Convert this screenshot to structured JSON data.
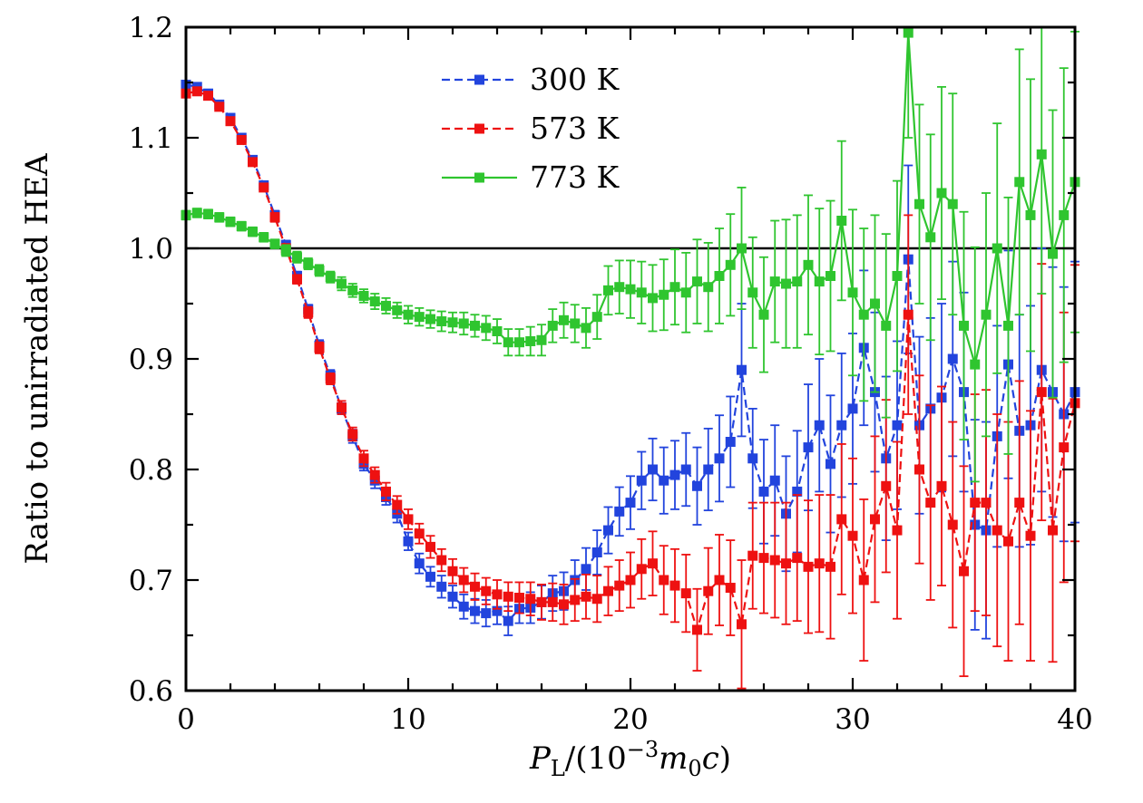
{
  "chart_data": {
    "type": "line",
    "title": "",
    "xlabel": "P_L/(10^-3 m_0 c)",
    "ylabel": "Ratio to unirradiated HEA",
    "xlabel_parts": [
      {
        "t": "P",
        "style": "italic"
      },
      {
        "t": "L",
        "script": "sub"
      },
      {
        "t": "/(10"
      },
      {
        "t": "−3",
        "script": "sup"
      },
      {
        "t": "m",
        "style": "italic"
      },
      {
        "t": "0",
        "script": "sub"
      },
      {
        "t": "c",
        "style": "italic"
      },
      {
        "t": ")"
      }
    ],
    "xlim": [
      0,
      40
    ],
    "ylim": [
      0.6,
      1.2
    ],
    "x_major_ticks": [
      0,
      10,
      20,
      30,
      40
    ],
    "x_tick_labels": [
      "0",
      "10",
      "20",
      "30",
      "40"
    ],
    "x_minor_ticks": [
      2,
      4,
      6,
      8,
      12,
      14,
      16,
      18,
      22,
      24,
      26,
      28,
      32,
      34,
      36,
      38
    ],
    "y_major_ticks": [
      0.6,
      0.7,
      0.8,
      0.9,
      1.0,
      1.1,
      1.2
    ],
    "y_tick_labels": [
      "0.6",
      "0.7",
      "0.8",
      "0.9",
      "1.0",
      "1.1",
      "1.2"
    ],
    "y_minor_ticks": [
      0.65,
      0.75,
      0.85,
      0.95,
      1.05,
      1.15
    ],
    "reference_line_y": 1.0,
    "grid": false,
    "legend_position": "top-center",
    "marker": "square",
    "error_bars": true,
    "x": [
      0,
      0.5,
      1,
      1.5,
      2,
      2.5,
      3,
      3.5,
      4,
      4.5,
      5,
      5.5,
      6,
      6.5,
      7,
      7.5,
      8,
      8.5,
      9,
      9.5,
      10,
      10.5,
      11,
      11.5,
      12,
      12.5,
      13,
      13.5,
      14,
      14.5,
      15,
      15.5,
      16,
      16.5,
      17,
      17.5,
      18,
      18.5,
      19,
      19.5,
      20,
      20.5,
      21,
      21.5,
      22,
      22.5,
      23,
      23.5,
      24,
      24.5,
      25,
      25.5,
      26,
      26.5,
      27,
      27.5,
      28,
      28.5,
      29,
      29.5,
      30,
      30.5,
      31,
      31.5,
      32,
      32.5,
      33,
      33.5,
      34,
      34.5,
      35,
      35.5,
      36,
      36.5,
      37,
      37.5,
      38,
      38.5,
      39,
      39.5,
      40
    ],
    "series": [
      {
        "name": "300 K",
        "color": "#2244dd",
        "dash": "9 5",
        "y": [
          1.148,
          1.146,
          1.14,
          1.13,
          1.118,
          1.1,
          1.08,
          1.057,
          1.03,
          1.003,
          0.975,
          0.945,
          0.912,
          0.885,
          0.855,
          0.83,
          0.805,
          0.79,
          0.775,
          0.76,
          0.735,
          0.715,
          0.703,
          0.694,
          0.685,
          0.676,
          0.672,
          0.67,
          0.672,
          0.663,
          0.674,
          0.675,
          0.68,
          0.688,
          0.69,
          0.7,
          0.71,
          0.725,
          0.745,
          0.762,
          0.77,
          0.79,
          0.8,
          0.79,
          0.795,
          0.8,
          0.785,
          0.8,
          0.81,
          0.825,
          0.89,
          0.81,
          0.78,
          0.79,
          0.76,
          0.78,
          0.82,
          0.84,
          0.805,
          0.84,
          0.855,
          0.91,
          0.87,
          0.81,
          0.84,
          0.99,
          0.84,
          0.855,
          0.865,
          0.9,
          0.87,
          0.75,
          0.745,
          0.83,
          0.895,
          0.835,
          0.84,
          0.89,
          0.87,
          0.85,
          0.87
        ],
        "err": [
          0.003,
          0.003,
          0.003,
          0.003,
          0.003,
          0.003,
          0.003,
          0.003,
          0.004,
          0.004,
          0.004,
          0.004,
          0.005,
          0.005,
          0.005,
          0.006,
          0.006,
          0.007,
          0.007,
          0.008,
          0.008,
          0.009,
          0.009,
          0.01,
          0.01,
          0.011,
          0.011,
          0.012,
          0.012,
          0.013,
          0.013,
          0.014,
          0.015,
          0.016,
          0.017,
          0.018,
          0.019,
          0.02,
          0.021,
          0.022,
          0.024,
          0.026,
          0.028,
          0.03,
          0.031,
          0.033,
          0.035,
          0.037,
          0.039,
          0.041,
          0.06,
          0.045,
          0.047,
          0.05,
          0.052,
          0.055,
          0.057,
          0.06,
          0.062,
          0.065,
          0.068,
          0.07,
          0.072,
          0.074,
          0.076,
          0.085,
          0.08,
          0.082,
          0.085,
          0.088,
          0.09,
          0.095,
          0.098,
          0.1,
          0.103,
          0.105,
          0.108,
          0.11,
          0.113,
          0.115,
          0.118
        ]
      },
      {
        "name": "573 K",
        "color": "#ee1111",
        "dash": "9 5",
        "y": [
          1.14,
          1.142,
          1.138,
          1.128,
          1.115,
          1.098,
          1.078,
          1.055,
          1.028,
          1.0,
          0.972,
          0.942,
          0.91,
          0.882,
          0.856,
          0.832,
          0.81,
          0.795,
          0.78,
          0.768,
          0.755,
          0.742,
          0.73,
          0.718,
          0.708,
          0.7,
          0.694,
          0.69,
          0.687,
          0.685,
          0.684,
          0.683,
          0.68,
          0.68,
          0.678,
          0.682,
          0.685,
          0.683,
          0.69,
          0.695,
          0.7,
          0.71,
          0.715,
          0.7,
          0.695,
          0.688,
          0.655,
          0.69,
          0.7,
          0.693,
          0.66,
          0.722,
          0.72,
          0.718,
          0.715,
          0.72,
          0.712,
          0.715,
          0.712,
          0.755,
          0.74,
          0.7,
          0.755,
          0.785,
          0.745,
          0.94,
          0.8,
          0.77,
          0.785,
          0.75,
          0.708,
          0.77,
          0.77,
          0.745,
          0.735,
          0.77,
          0.74,
          0.87,
          0.745,
          0.82,
          0.86
        ],
        "err": [
          0.003,
          0.003,
          0.003,
          0.003,
          0.003,
          0.003,
          0.003,
          0.003,
          0.004,
          0.004,
          0.004,
          0.005,
          0.005,
          0.005,
          0.006,
          0.006,
          0.007,
          0.007,
          0.008,
          0.008,
          0.009,
          0.009,
          0.01,
          0.01,
          0.011,
          0.011,
          0.012,
          0.012,
          0.013,
          0.013,
          0.014,
          0.015,
          0.016,
          0.017,
          0.018,
          0.019,
          0.02,
          0.021,
          0.022,
          0.023,
          0.025,
          0.027,
          0.029,
          0.031,
          0.033,
          0.035,
          0.037,
          0.039,
          0.041,
          0.043,
          0.058,
          0.048,
          0.05,
          0.052,
          0.055,
          0.057,
          0.06,
          0.062,
          0.065,
          0.068,
          0.07,
          0.073,
          0.075,
          0.078,
          0.08,
          0.09,
          0.085,
          0.088,
          0.09,
          0.093,
          0.095,
          0.098,
          0.102,
          0.105,
          0.108,
          0.11,
          0.113,
          0.116,
          0.119,
          0.122,
          0.125
        ]
      },
      {
        "name": "773 K",
        "color": "#2fc52f",
        "dash": "",
        "y": [
          1.03,
          1.032,
          1.031,
          1.028,
          1.024,
          1.02,
          1.015,
          1.01,
          1.004,
          0.998,
          0.992,
          0.986,
          0.98,
          0.974,
          0.968,
          0.962,
          0.957,
          0.952,
          0.948,
          0.944,
          0.94,
          0.938,
          0.936,
          0.934,
          0.933,
          0.932,
          0.93,
          0.928,
          0.925,
          0.915,
          0.915,
          0.916,
          0.917,
          0.93,
          0.935,
          0.932,
          0.928,
          0.938,
          0.962,
          0.965,
          0.963,
          0.96,
          0.955,
          0.958,
          0.965,
          0.96,
          0.97,
          0.965,
          0.975,
          0.985,
          1.0,
          0.96,
          0.94,
          0.97,
          0.968,
          0.97,
          0.985,
          0.97,
          0.975,
          1.025,
          0.96,
          0.94,
          0.95,
          0.93,
          0.975,
          1.195,
          1.04,
          1.01,
          1.05,
          1.04,
          0.93,
          0.895,
          0.94,
          1.0,
          0.93,
          1.06,
          1.03,
          1.085,
          0.995,
          1.03,
          1.06
        ],
        "err": [
          0.004,
          0.004,
          0.004,
          0.004,
          0.004,
          0.004,
          0.004,
          0.004,
          0.004,
          0.005,
          0.005,
          0.005,
          0.005,
          0.005,
          0.006,
          0.006,
          0.006,
          0.007,
          0.007,
          0.007,
          0.008,
          0.008,
          0.008,
          0.009,
          0.009,
          0.01,
          0.01,
          0.011,
          0.011,
          0.012,
          0.012,
          0.013,
          0.014,
          0.015,
          0.016,
          0.017,
          0.018,
          0.02,
          0.022,
          0.024,
          0.026,
          0.028,
          0.03,
          0.032,
          0.034,
          0.036,
          0.038,
          0.04,
          0.043,
          0.046,
          0.055,
          0.05,
          0.052,
          0.055,
          0.058,
          0.06,
          0.063,
          0.066,
          0.068,
          0.072,
          0.075,
          0.078,
          0.08,
          0.083,
          0.086,
          0.095,
          0.09,
          0.093,
          0.096,
          0.1,
          0.103,
          0.106,
          0.11,
          0.113,
          0.116,
          0.12,
          0.123,
          0.126,
          0.13,
          0.133,
          0.136
        ]
      }
    ]
  },
  "style": {
    "axis_color": "#000000",
    "background": "#ffffff",
    "tick_font_size": 31,
    "label_font_size": 34,
    "legend_font_size": 33
  }
}
